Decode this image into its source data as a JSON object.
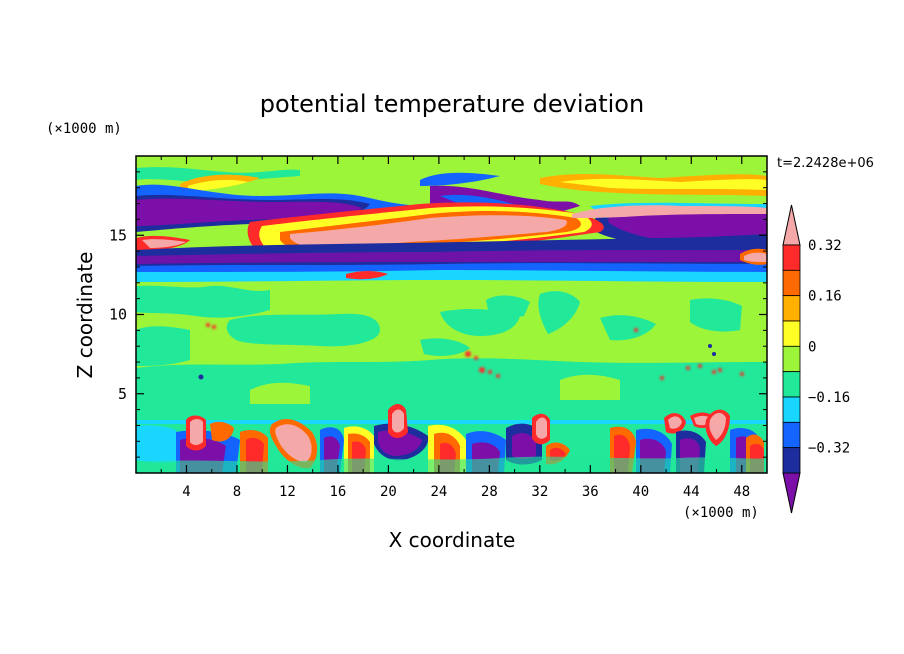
{
  "chart_data": {
    "type": "heatmap",
    "title": "potential temperature deviation",
    "xlabel": "X coordinate",
    "ylabel": "Z coordinate",
    "x_unit": "(×1000 m)",
    "y_unit": "(×1000 m)",
    "time_label": "t=2.2428e+06",
    "xlim": [
      0,
      50
    ],
    "ylim": [
      0,
      20
    ],
    "x_ticks": [
      4,
      8,
      12,
      16,
      20,
      24,
      28,
      32,
      36,
      40,
      44,
      48
    ],
    "y_ticks": [
      5,
      10,
      15
    ],
    "colorbar": {
      "labels": [
        "0.32",
        "0.16",
        "0",
        "-0.16",
        "-0.32"
      ],
      "label_values": [
        0.32,
        0.16,
        0,
        -0.16,
        -0.32
      ],
      "levels": [
        -0.44,
        -0.4,
        -0.32,
        -0.24,
        -0.16,
        -0.08,
        0,
        0.08,
        0.16,
        0.24,
        0.32,
        0.4
      ],
      "colors": [
        "#7b0fa8",
        "#1e2d9e",
        "#1464ff",
        "#19d6ff",
        "#22e89a",
        "#9df53a",
        "#ffff26",
        "#ffb000",
        "#ff6a00",
        "#ff2a2a",
        "#f5a8a8"
      ]
    },
    "background_level_color": "#9df53a"
  }
}
